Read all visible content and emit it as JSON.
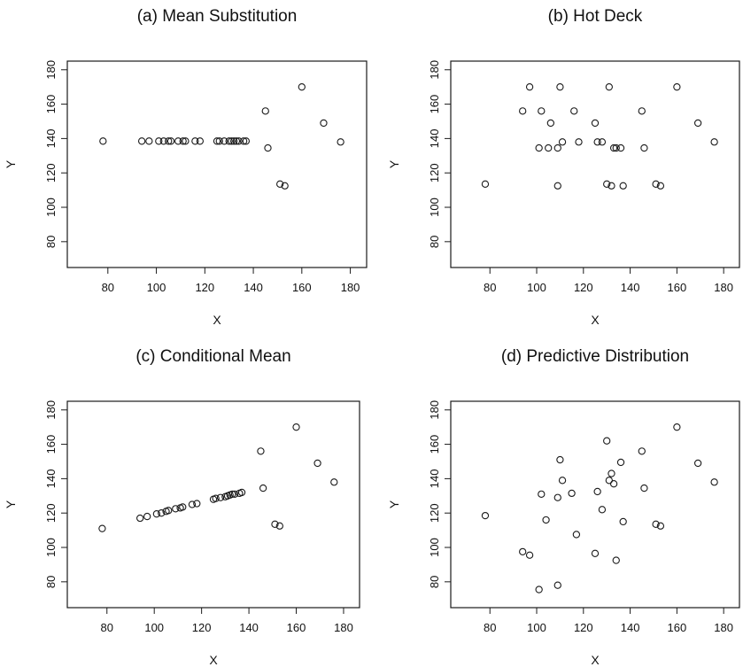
{
  "chart_data": [
    {
      "type": "scatter",
      "title": "(a) Mean Substitution",
      "xlabel": "X",
      "ylabel": "Y",
      "xlim": [
        64,
        186
      ],
      "ylim": [
        66,
        184
      ],
      "xticks": [
        80,
        100,
        120,
        140,
        160,
        180
      ],
      "yticks": [
        80,
        100,
        120,
        140,
        160,
        180
      ],
      "grid": false,
      "points": [
        {
          "x": 78,
          "y": 138.5
        },
        {
          "x": 94,
          "y": 138.5
        },
        {
          "x": 97,
          "y": 138.5
        },
        {
          "x": 101,
          "y": 138.5
        },
        {
          "x": 103,
          "y": 138.5
        },
        {
          "x": 105,
          "y": 138.5
        },
        {
          "x": 106,
          "y": 138.5
        },
        {
          "x": 109,
          "y": 138.5
        },
        {
          "x": 111,
          "y": 138.5
        },
        {
          "x": 112,
          "y": 138.5
        },
        {
          "x": 116,
          "y": 138.5
        },
        {
          "x": 118,
          "y": 138.5
        },
        {
          "x": 125,
          "y": 138.5
        },
        {
          "x": 126,
          "y": 138.5
        },
        {
          "x": 128,
          "y": 138.5
        },
        {
          "x": 130,
          "y": 138.5
        },
        {
          "x": 131,
          "y": 138.5
        },
        {
          "x": 132,
          "y": 138.5
        },
        {
          "x": 133,
          "y": 138.5
        },
        {
          "x": 134,
          "y": 138.5
        },
        {
          "x": 136,
          "y": 138.5
        },
        {
          "x": 137,
          "y": 138.5
        },
        {
          "x": 145,
          "y": 156
        },
        {
          "x": 146,
          "y": 134.5
        },
        {
          "x": 151,
          "y": 113.5
        },
        {
          "x": 153,
          "y": 112.5
        },
        {
          "x": 160,
          "y": 170
        },
        {
          "x": 169,
          "y": 149
        },
        {
          "x": 176,
          "y": 138
        }
      ]
    },
    {
      "type": "scatter",
      "title": "(b) Hot Deck",
      "xlabel": "X",
      "ylabel": "Y",
      "xlim": [
        64,
        186
      ],
      "ylim": [
        66,
        184
      ],
      "xticks": [
        80,
        100,
        120,
        140,
        160,
        180
      ],
      "yticks": [
        80,
        100,
        120,
        140,
        160,
        180
      ],
      "grid": false,
      "points": [
        {
          "x": 78,
          "y": 113.5
        },
        {
          "x": 94,
          "y": 156
        },
        {
          "x": 97,
          "y": 170
        },
        {
          "x": 101,
          "y": 134.5
        },
        {
          "x": 102,
          "y": 156
        },
        {
          "x": 105,
          "y": 134.5
        },
        {
          "x": 106,
          "y": 149
        },
        {
          "x": 109,
          "y": 134.5
        },
        {
          "x": 109,
          "y": 112.5
        },
        {
          "x": 110,
          "y": 170
        },
        {
          "x": 111,
          "y": 138
        },
        {
          "x": 116,
          "y": 156
        },
        {
          "x": 118,
          "y": 138
        },
        {
          "x": 125,
          "y": 149
        },
        {
          "x": 126,
          "y": 138
        },
        {
          "x": 128,
          "y": 138
        },
        {
          "x": 130,
          "y": 113.5
        },
        {
          "x": 131,
          "y": 170
        },
        {
          "x": 132,
          "y": 112.5
        },
        {
          "x": 133,
          "y": 134.5
        },
        {
          "x": 134,
          "y": 134.5
        },
        {
          "x": 136,
          "y": 134.5
        },
        {
          "x": 137,
          "y": 112.5
        },
        {
          "x": 145,
          "y": 156
        },
        {
          "x": 146,
          "y": 134.5
        },
        {
          "x": 151,
          "y": 113.5
        },
        {
          "x": 153,
          "y": 112.5
        },
        {
          "x": 160,
          "y": 170
        },
        {
          "x": 169,
          "y": 149
        },
        {
          "x": 176,
          "y": 138
        }
      ]
    },
    {
      "type": "scatter",
      "title": "(c) Conditional Mean",
      "xlabel": "X",
      "ylabel": "Y",
      "xlim": [
        64,
        186
      ],
      "ylim": [
        66,
        184
      ],
      "xticks": [
        80,
        100,
        120,
        140,
        160,
        180
      ],
      "yticks": [
        80,
        100,
        120,
        140,
        160,
        180
      ],
      "grid": false,
      "points": [
        {
          "x": 78,
          "y": 111
        },
        {
          "x": 94,
          "y": 117
        },
        {
          "x": 97,
          "y": 118
        },
        {
          "x": 101,
          "y": 119.5
        },
        {
          "x": 103,
          "y": 120
        },
        {
          "x": 105,
          "y": 121
        },
        {
          "x": 106,
          "y": 121.5
        },
        {
          "x": 109,
          "y": 122.5
        },
        {
          "x": 111,
          "y": 123
        },
        {
          "x": 112,
          "y": 123.5
        },
        {
          "x": 116,
          "y": 125
        },
        {
          "x": 118,
          "y": 125.5
        },
        {
          "x": 125,
          "y": 128
        },
        {
          "x": 126,
          "y": 128.5
        },
        {
          "x": 128,
          "y": 129
        },
        {
          "x": 130,
          "y": 129.5
        },
        {
          "x": 131,
          "y": 130
        },
        {
          "x": 132,
          "y": 130.5
        },
        {
          "x": 133,
          "y": 131
        },
        {
          "x": 134,
          "y": 131
        },
        {
          "x": 136,
          "y": 131.5
        },
        {
          "x": 137,
          "y": 132
        },
        {
          "x": 145,
          "y": 156
        },
        {
          "x": 146,
          "y": 134.5
        },
        {
          "x": 151,
          "y": 113.5
        },
        {
          "x": 153,
          "y": 112.5
        },
        {
          "x": 160,
          "y": 170
        },
        {
          "x": 169,
          "y": 149
        },
        {
          "x": 176,
          "y": 138
        }
      ]
    },
    {
      "type": "scatter",
      "title": "(d) Predictive Distribution",
      "xlabel": "X",
      "ylabel": "Y",
      "xlim": [
        64,
        186
      ],
      "ylim": [
        66,
        184
      ],
      "xticks": [
        80,
        100,
        120,
        140,
        160,
        180
      ],
      "yticks": [
        80,
        100,
        120,
        140,
        160,
        180
      ],
      "grid": false,
      "points": [
        {
          "x": 78,
          "y": 118.5
        },
        {
          "x": 94,
          "y": 97.5
        },
        {
          "x": 97,
          "y": 95.5
        },
        {
          "x": 101,
          "y": 75.5
        },
        {
          "x": 102,
          "y": 131
        },
        {
          "x": 104,
          "y": 116
        },
        {
          "x": 109,
          "y": 129
        },
        {
          "x": 109,
          "y": 78
        },
        {
          "x": 110,
          "y": 151
        },
        {
          "x": 111,
          "y": 139
        },
        {
          "x": 115,
          "y": 131.5
        },
        {
          "x": 117,
          "y": 107.5
        },
        {
          "x": 125,
          "y": 96.5
        },
        {
          "x": 126,
          "y": 132.5
        },
        {
          "x": 128,
          "y": 122
        },
        {
          "x": 130,
          "y": 162
        },
        {
          "x": 131,
          "y": 139
        },
        {
          "x": 132,
          "y": 143
        },
        {
          "x": 133,
          "y": 137
        },
        {
          "x": 134,
          "y": 92.5
        },
        {
          "x": 136,
          "y": 149.5
        },
        {
          "x": 137,
          "y": 115
        },
        {
          "x": 145,
          "y": 156
        },
        {
          "x": 146,
          "y": 134.5
        },
        {
          "x": 151,
          "y": 113.5
        },
        {
          "x": 153,
          "y": 112.5
        },
        {
          "x": 160,
          "y": 170
        },
        {
          "x": 169,
          "y": 149
        },
        {
          "x": 176,
          "y": 138
        }
      ]
    }
  ]
}
